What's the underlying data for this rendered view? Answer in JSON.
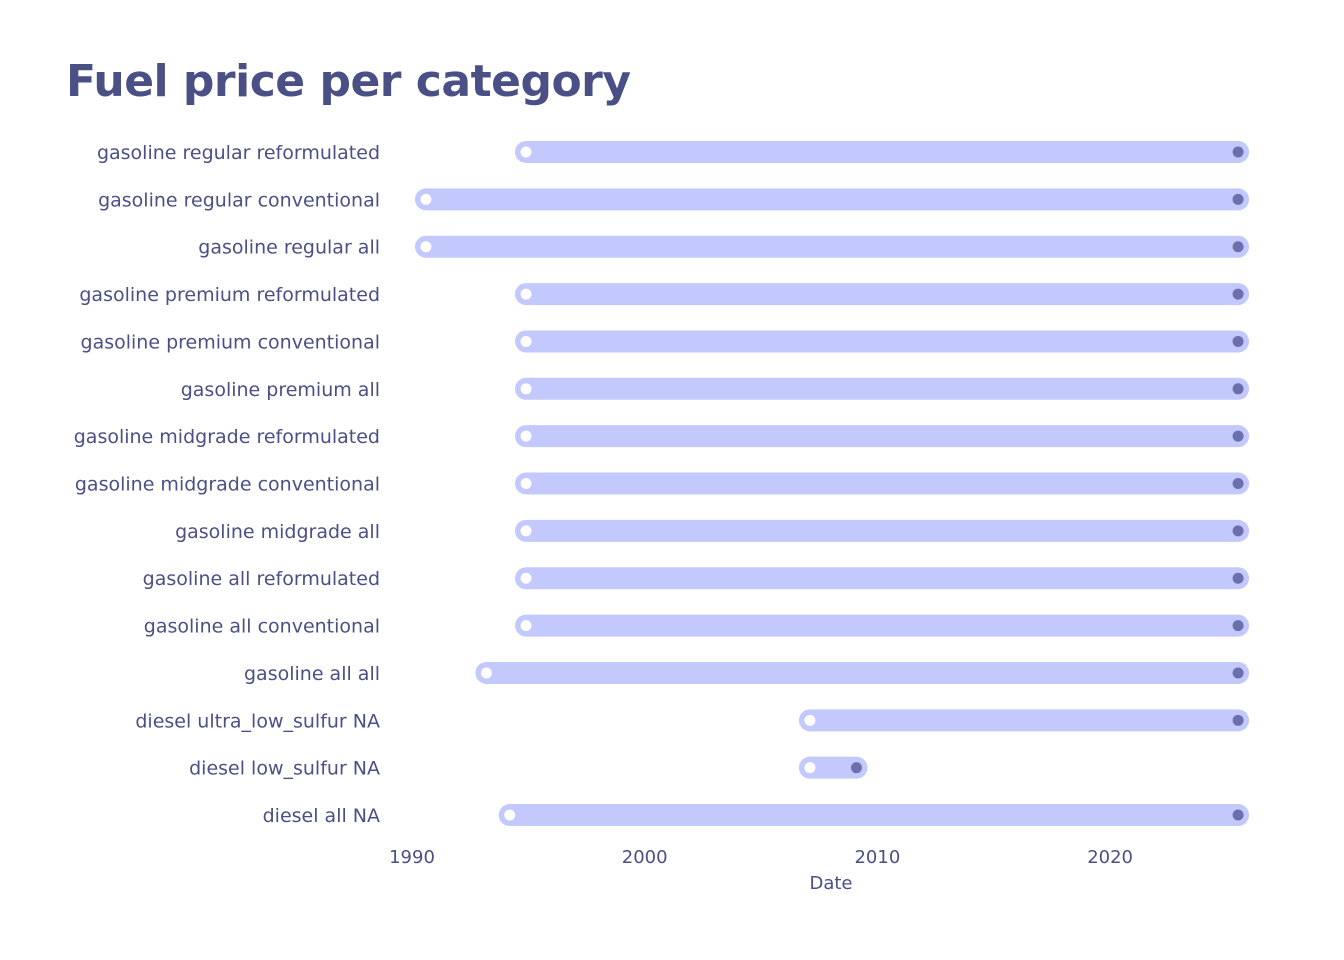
{
  "chart_data": {
    "type": "dumbbell",
    "title": "Fuel price per category",
    "xlabel": "Date",
    "ylabel": "",
    "x_ticks": [
      "1990",
      "2000",
      "2010",
      "2020"
    ],
    "xlim": [
      1989.6,
      2025.8
    ],
    "grid": false,
    "colors": {
      "bar": "#c3c9fd",
      "start_point": "#ffffff",
      "end_point": "#6a70ad",
      "text": "#4a5085"
    },
    "categories": [
      "gasoline regular reformulated",
      "gasoline regular conventional",
      "gasoline regular all",
      "gasoline premium reformulated",
      "gasoline premium conventional",
      "gasoline premium all",
      "gasoline midgrade reformulated",
      "gasoline midgrade conventional",
      "gasoline midgrade all",
      "gasoline all reformulated",
      "gasoline all conventional",
      "gasoline all all",
      "diesel ultra_low_sulfur NA",
      "diesel low_sulfur NA",
      "diesel all NA"
    ],
    "start": [
      1994.9,
      1990.6,
      1990.6,
      1994.9,
      1994.9,
      1994.9,
      1994.9,
      1994.9,
      1994.9,
      1994.9,
      1994.9,
      1993.2,
      2007.1,
      2007.1,
      1994.2
    ],
    "end": [
      2025.5,
      2025.5,
      2025.5,
      2025.5,
      2025.5,
      2025.5,
      2025.5,
      2025.5,
      2025.5,
      2025.5,
      2025.5,
      2025.5,
      2025.5,
      2009.1,
      2025.5
    ]
  }
}
